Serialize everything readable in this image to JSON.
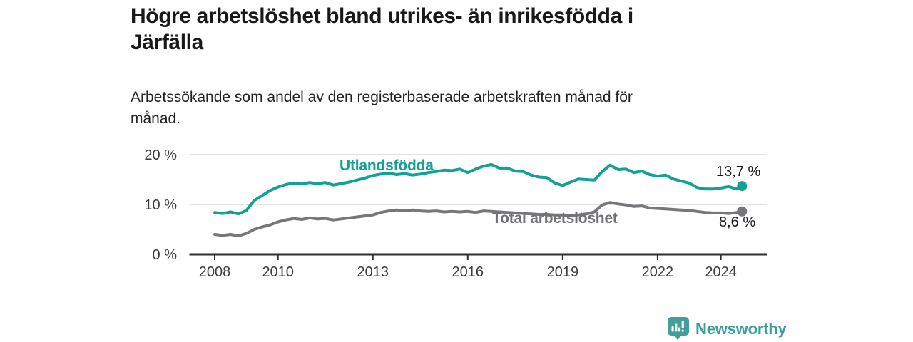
{
  "header": {
    "title_line1": "Högre arbetslöshet bland utrikes- än inrikesfödda i",
    "title_line2": "Järfälla",
    "subtitle_line1": "Arbetssökande som andel av den registerbaserade arbetskraften månad för",
    "subtitle_line2": "månad."
  },
  "chart_data": {
    "type": "line",
    "title": "Högre arbetslöshet bland utrikes- än inrikesfödda i Järfälla",
    "subtitle": "Arbetssökande som andel av den registerbaserade arbetskraften månad för månad.",
    "grid": "horizontal",
    "legend": "inline-labels",
    "x_axis": {
      "ticks": [
        2008,
        2010,
        2013,
        2016,
        2019,
        2022,
        2024
      ],
      "tick_labels": [
        "2008",
        "2010",
        "2013",
        "2016",
        "2019",
        "2022",
        "2024"
      ],
      "range": [
        2007.2,
        2025.4
      ]
    },
    "y_axis": {
      "ticks": [
        0,
        10,
        20
      ],
      "tick_labels": [
        "0 %",
        "10 %",
        "20 %"
      ],
      "range": [
        0,
        21
      ],
      "unit": "%"
    },
    "x": [
      2008,
      2008.25,
      2008.5,
      2008.75,
      2009,
      2009.25,
      2009.5,
      2009.75,
      2010,
      2010.25,
      2010.5,
      2010.75,
      2011,
      2011.25,
      2011.5,
      2011.75,
      2012,
      2012.25,
      2012.5,
      2012.75,
      2013,
      2013.25,
      2013.5,
      2013.75,
      2014,
      2014.25,
      2014.5,
      2014.75,
      2015,
      2015.25,
      2015.5,
      2015.75,
      2016,
      2016.25,
      2016.5,
      2016.75,
      2017,
      2017.25,
      2017.5,
      2017.75,
      2018,
      2018.25,
      2018.5,
      2018.75,
      2019,
      2019.25,
      2019.5,
      2019.75,
      2020,
      2020.25,
      2020.5,
      2020.75,
      2021,
      2021.25,
      2021.5,
      2021.75,
      2022,
      2022.25,
      2022.5,
      2022.75,
      2023,
      2023.25,
      2023.5,
      2023.75,
      2024,
      2024.25,
      2024.5,
      2024.67
    ],
    "series": [
      {
        "name": "Utlandsfödda",
        "color": "#12a195",
        "end_label": "13,7 %",
        "end_value": 13.7,
        "values": [
          8.4,
          8.2,
          8.5,
          8.1,
          8.8,
          10.8,
          11.8,
          12.8,
          13.5,
          14.0,
          14.3,
          14.1,
          14.4,
          14.2,
          14.4,
          13.9,
          14.2,
          14.5,
          14.9,
          15.3,
          15.8,
          16.1,
          16.3,
          16.0,
          16.2,
          15.9,
          16.1,
          16.4,
          16.6,
          16.9,
          16.8,
          17.1,
          16.4,
          17.1,
          17.7,
          18.0,
          17.3,
          17.3,
          16.7,
          16.6,
          15.9,
          15.5,
          15.4,
          14.3,
          13.8,
          14.5,
          15.1,
          15.0,
          14.9,
          16.6,
          17.9,
          17.0,
          17.1,
          16.4,
          16.7,
          16.0,
          15.7,
          15.9,
          15.1,
          14.7,
          14.3,
          13.4,
          13.1,
          13.1,
          13.3,
          13.6,
          13.1,
          13.7
        ]
      },
      {
        "name": "Total arbetslöshet",
        "color": "#77777b",
        "end_label": "8,6 %",
        "end_value": 8.6,
        "values": [
          4.0,
          3.8,
          4.0,
          3.7,
          4.2,
          5.0,
          5.5,
          5.9,
          6.5,
          6.9,
          7.2,
          7.0,
          7.3,
          7.1,
          7.2,
          6.9,
          7.1,
          7.3,
          7.5,
          7.7,
          7.9,
          8.4,
          8.7,
          8.9,
          8.7,
          8.9,
          8.7,
          8.6,
          8.7,
          8.5,
          8.6,
          8.5,
          8.6,
          8.4,
          8.7,
          8.6,
          8.5,
          8.4,
          8.3,
          8.2,
          8.1,
          8.0,
          8.0,
          7.9,
          7.9,
          7.8,
          7.9,
          8.1,
          8.5,
          9.9,
          10.4,
          10.1,
          9.9,
          9.6,
          9.7,
          9.3,
          9.2,
          9.1,
          9.0,
          8.9,
          8.8,
          8.6,
          8.4,
          8.3,
          8.3,
          8.2,
          8.4,
          8.6
        ]
      }
    ]
  },
  "branding": {
    "logo_text": "Newsworthy",
    "logo_color": "#3a9d9a",
    "logo_icon": "bar-chart-speech-bubble-icon"
  },
  "colors": {
    "accent_teal": "#12a195",
    "neutral_gray": "#77777b",
    "axis": "#2f2f2f",
    "gridline": "#d9d9d9",
    "text": "#191919"
  }
}
